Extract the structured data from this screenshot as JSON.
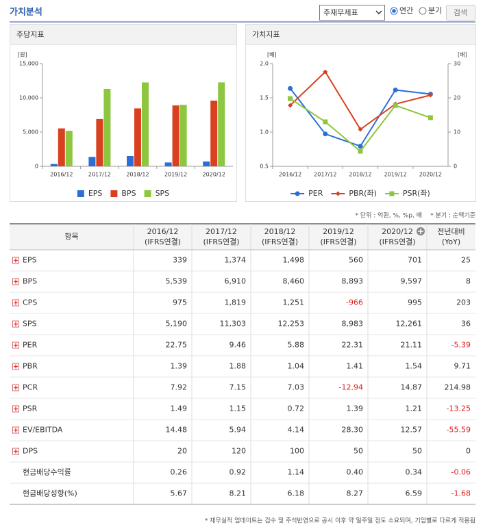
{
  "header": {
    "title": "가치분석",
    "select": "주재무제표",
    "radio_options": [
      "연간",
      "분기"
    ],
    "radio_selected": 0,
    "button": "검색"
  },
  "chart_data": [
    {
      "type": "bar",
      "title": "주당지표",
      "ylabel": "[원]",
      "categories": [
        "2016/12",
        "2017/12",
        "2018/12",
        "2019/12",
        "2020/12"
      ],
      "series": [
        {
          "name": "EPS",
          "color": "#2b6fd6",
          "values": [
            339,
            1374,
            1498,
            560,
            701
          ]
        },
        {
          "name": "BPS",
          "color": "#d9401f",
          "values": [
            5539,
            6910,
            8460,
            8893,
            9597
          ]
        },
        {
          "name": "SPS",
          "color": "#8dc63f",
          "values": [
            5190,
            11303,
            12253,
            8983,
            12261
          ]
        }
      ],
      "ylim": [
        0,
        15000
      ],
      "yticks": [
        0,
        {
          "value": 5000,
          "label": "5,000"
        },
        {
          "value": 10000,
          "label": "10,000"
        },
        {
          "value": 15000,
          "label": "15,000"
        }
      ]
    },
    {
      "type": "line",
      "title": "가치지표",
      "ylabel": "[배]",
      "y2label": "[배]",
      "categories": [
        "2016/12",
        "2017/12",
        "2018/12",
        "2019/12",
        "2020/12"
      ],
      "series": [
        {
          "name": "PER",
          "color": "#2b6fd6",
          "marker": "circle",
          "axis": "y2",
          "values": [
            22.75,
            9.46,
            5.88,
            22.31,
            21.11
          ]
        },
        {
          "name": "PBR(좌)",
          "color": "#d9401f",
          "marker": "diamond",
          "values": [
            1.39,
            1.88,
            1.04,
            1.41,
            1.54
          ]
        },
        {
          "name": "PSR(좌)",
          "color": "#8dc63f",
          "marker": "square",
          "values": [
            1.49,
            1.15,
            0.72,
            1.39,
            1.21
          ]
        }
      ],
      "ylim": [
        0.5,
        2.0
      ],
      "yticks": [
        0.5,
        {
          "value": 1,
          "label": "1.0"
        },
        1.5,
        {
          "value": 2,
          "label": "2.0"
        }
      ],
      "y2lim": [
        0,
        30
      ],
      "y2ticks": [
        0,
        10,
        20,
        30
      ]
    }
  ],
  "table": {
    "unit_note": "* 단위 : 억원, %, %p, 배",
    "quarter_note": "* 분기 : 순액기준",
    "columns": [
      [
        "항목"
      ],
      [
        "2016/12",
        "(IFRS연결)"
      ],
      [
        "2017/12",
        "(IFRS연결)"
      ],
      [
        "2018/12",
        "(IFRS연결)"
      ],
      [
        "2019/12",
        "(IFRS연결)"
      ],
      [
        "2020/12",
        "(IFRS연결)"
      ],
      [
        "전년대비",
        "(YoY)"
      ]
    ],
    "rows": [
      [
        "EPS",
        "339",
        "1,374",
        "1,498",
        "560",
        "701",
        "25"
      ],
      [
        "BPS",
        "5,539",
        "6,910",
        "8,460",
        "8,893",
        "9,597",
        "8"
      ],
      [
        "CPS",
        "975",
        "1,819",
        "1,251",
        "-966",
        "995",
        "203"
      ],
      [
        "SPS",
        "5,190",
        "11,303",
        "12,253",
        "8,983",
        "12,261",
        "36"
      ],
      [
        "PER",
        "22.75",
        "9.46",
        "5.88",
        "22.31",
        "21.11",
        "-5.39"
      ],
      [
        "PBR",
        "1.39",
        "1.88",
        "1.04",
        "1.41",
        "1.54",
        "9.71"
      ],
      [
        "PCR",
        "7.92",
        "7.15",
        "7.03",
        "-12.94",
        "14.87",
        "214.98"
      ],
      [
        "PSR",
        "1.49",
        "1.15",
        "0.72",
        "1.39",
        "1.21",
        "-13.25"
      ],
      [
        "EV/EBITDA",
        "14.48",
        "5.94",
        "4.14",
        "28.30",
        "12.57",
        "-55.59"
      ],
      [
        "DPS",
        "20",
        "120",
        "100",
        "50",
        "50",
        "0"
      ],
      [
        "현금배당수익률",
        "0.26",
        "0.92",
        "1.14",
        "0.40",
        "0.34",
        "-0.06"
      ],
      [
        "현금배당성향(%)",
        "5.67",
        "8.21",
        "6.18",
        "8.27",
        "6.59",
        "-1.68"
      ]
    ]
  },
  "footnote": "* 재무실적 업데이트는 검수 및 주석반영으로 공시 이후 약 일주일 정도 소요되며, 기업별로 다르게 적용됨"
}
